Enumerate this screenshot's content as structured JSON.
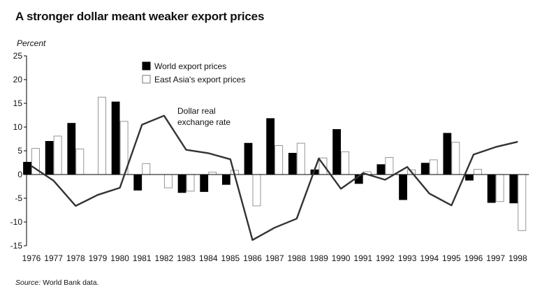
{
  "title": "A stronger dollar meant weaker export prices",
  "y_unit_label": "Percent",
  "source": {
    "label": "Source:",
    "text": "World Bank data."
  },
  "colors": {
    "world": "#000000",
    "east_asia": "#ffffff",
    "line": "#333333",
    "axis": "#000000"
  },
  "chart_data": {
    "type": "bar",
    "title": "A stronger dollar meant weaker export prices",
    "ylabel": "Percent",
    "xlabel": "",
    "ylim": [
      -15,
      25
    ],
    "yticks": [
      25,
      20,
      15,
      10,
      5,
      0,
      -5,
      -10,
      -15
    ],
    "grid": false,
    "legend_position": "top-center",
    "categories": [
      "1976",
      "1977",
      "1978",
      "1979",
      "1980",
      "1981",
      "1982",
      "1983",
      "1984",
      "1985",
      "1986",
      "1987",
      "1988",
      "1989",
      "1990",
      "1991",
      "1992",
      "1993",
      "1994",
      "1995",
      "1996",
      "1997",
      "1998"
    ],
    "series": [
      {
        "name": "World export prices",
        "kind": "bar",
        "values": [
          2.6,
          7.0,
          10.8,
          null,
          15.3,
          -3.3,
          null,
          -3.8,
          -3.6,
          -2.1,
          6.6,
          11.8,
          4.5,
          1.0,
          9.5,
          -1.9,
          2.1,
          -5.3,
          2.4,
          8.7,
          -1.2,
          -5.9,
          -6.0
        ]
      },
      {
        "name": "East Asia's export prices",
        "kind": "bar",
        "values": [
          5.5,
          8.1,
          5.4,
          16.3,
          11.2,
          2.3,
          -2.8,
          -3.5,
          0.5,
          0.9,
          -6.6,
          6.1,
          6.6,
          3.5,
          4.8,
          0.6,
          3.6,
          1.0,
          3.1,
          6.8,
          1.1,
          -5.7,
          -11.8
        ]
      },
      {
        "name": "Dollar real exchange rate",
        "kind": "line",
        "values": [
          1.8,
          -1.3,
          -6.6,
          -4.3,
          -2.8,
          10.5,
          12.4,
          5.2,
          4.5,
          3.2,
          -13.8,
          -11.2,
          -9.3,
          3.4,
          -3.0,
          0.3,
          -1.1,
          1.6,
          -4.0,
          -6.5,
          4.2,
          5.8,
          6.9
        ]
      }
    ],
    "legend": [
      "World export prices",
      "East Asia's export prices"
    ],
    "annotations": [
      {
        "text_lines": [
          "Dollar real",
          "exchange rate"
        ],
        "series": "Dollar real exchange rate"
      }
    ]
  }
}
